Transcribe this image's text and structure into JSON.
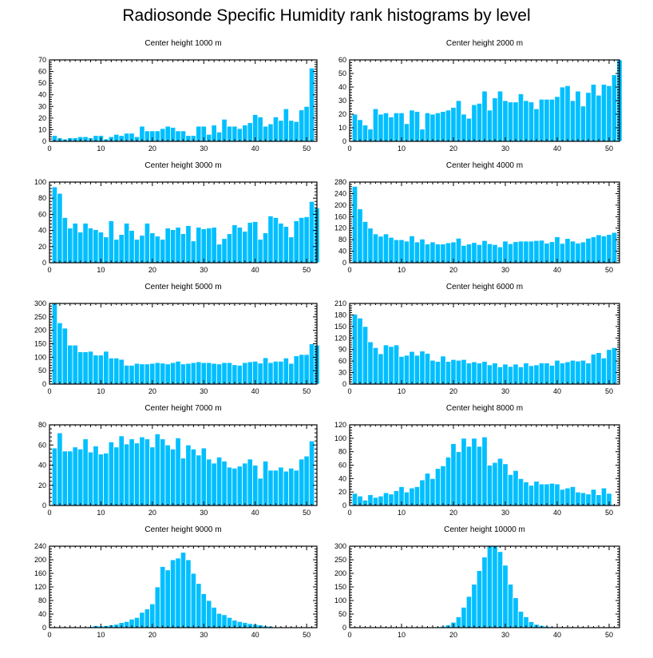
{
  "title": "Radiosonde Specific Humidity rank histograms by level",
  "colors": {
    "bar": "#00bfff",
    "bar_edge": "#ffffff",
    "axis": "#000000"
  },
  "chart_data": [
    {
      "type": "bar",
      "title": "Center height 1000 m",
      "x_start": 1,
      "xlim": [
        0,
        52
      ],
      "xticks": [
        0,
        10,
        20,
        30,
        40,
        50
      ],
      "ylim": [
        0,
        70
      ],
      "yticks": [
        0,
        10,
        20,
        30,
        40,
        50,
        60,
        70
      ],
      "values": [
        5,
        3,
        2,
        3,
        3,
        4,
        4,
        3,
        5,
        5,
        2,
        4,
        6,
        5,
        7,
        7,
        4,
        13,
        9,
        9,
        9,
        11,
        13,
        12,
        9,
        9,
        5,
        5,
        13,
        13,
        6,
        14,
        8,
        19,
        13,
        13,
        11,
        14,
        16,
        23,
        21,
        13,
        15,
        21,
        18,
        28,
        18,
        17,
        27,
        30,
        63,
        0
      ]
    },
    {
      "type": "bar",
      "title": "Center height 2000 m",
      "x_start": 1,
      "xlim": [
        0,
        52
      ],
      "xticks": [
        0,
        10,
        20,
        30,
        40,
        50
      ],
      "ylim": [
        0,
        60
      ],
      "yticks": [
        0,
        10,
        20,
        30,
        40,
        50,
        60
      ],
      "values": [
        20,
        16,
        12,
        9,
        24,
        20,
        21,
        18,
        21,
        21,
        13,
        23,
        22,
        9,
        21,
        20,
        21,
        22,
        23,
        25,
        30,
        20,
        17,
        27,
        28,
        37,
        23,
        32,
        37,
        30,
        29,
        29,
        35,
        30,
        29,
        24,
        31,
        31,
        31,
        33,
        40,
        41,
        30,
        37,
        26,
        36,
        42,
        34,
        42,
        41,
        49,
        60
      ]
    },
    {
      "type": "bar",
      "title": "Center height 3000 m",
      "x_start": 1,
      "xlim": [
        0,
        52
      ],
      "xticks": [
        0,
        10,
        20,
        30,
        40,
        50
      ],
      "ylim": [
        0,
        100
      ],
      "yticks": [
        0,
        20,
        40,
        60,
        80,
        100
      ],
      "values": [
        94,
        86,
        56,
        43,
        49,
        38,
        49,
        43,
        41,
        38,
        32,
        52,
        29,
        35,
        49,
        40,
        29,
        34,
        49,
        37,
        33,
        29,
        43,
        41,
        44,
        36,
        46,
        27,
        44,
        42,
        43,
        44,
        23,
        30,
        36,
        47,
        44,
        39,
        50,
        51,
        29,
        37,
        58,
        56,
        49,
        45,
        32,
        52,
        56,
        57,
        76,
        68
      ]
    },
    {
      "type": "bar",
      "title": "Center height 4000 m",
      "x_start": 1,
      "xlim": [
        0,
        52
      ],
      "xticks": [
        0,
        10,
        20,
        30,
        40,
        50
      ],
      "ylim": [
        0,
        280
      ],
      "yticks": [
        0,
        40,
        80,
        120,
        160,
        200,
        240,
        280
      ],
      "values": [
        265,
        187,
        143,
        120,
        100,
        92,
        100,
        88,
        80,
        80,
        75,
        93,
        72,
        82,
        65,
        72,
        65,
        65,
        69,
        72,
        85,
        60,
        65,
        70,
        63,
        77,
        66,
        63,
        55,
        75,
        66,
        73,
        75,
        75,
        75,
        77,
        78,
        68,
        73,
        90,
        67,
        84,
        75,
        68,
        72,
        85,
        90,
        97,
        93,
        98,
        105,
        0
      ]
    },
    {
      "type": "bar",
      "title": "Center height 5000 m",
      "x_start": 1,
      "xlim": [
        0,
        52
      ],
      "xticks": [
        0,
        10,
        20,
        30,
        40,
        50
      ],
      "ylim": [
        0,
        300
      ],
      "yticks": [
        0,
        50,
        100,
        150,
        200,
        250,
        300
      ],
      "values": [
        300,
        228,
        208,
        145,
        145,
        120,
        120,
        122,
        108,
        108,
        122,
        97,
        97,
        92,
        70,
        70,
        77,
        75,
        75,
        77,
        80,
        78,
        75,
        80,
        85,
        75,
        77,
        80,
        83,
        80,
        80,
        77,
        75,
        80,
        80,
        72,
        70,
        80,
        83,
        85,
        78,
        98,
        80,
        85,
        85,
        97,
        77,
        105,
        110,
        110,
        150,
        145
      ]
    },
    {
      "type": "bar",
      "title": "Center height 6000 m",
      "x_start": 1,
      "xlim": [
        0,
        52
      ],
      "xticks": [
        0,
        10,
        20,
        30,
        40,
        50
      ],
      "ylim": [
        0,
        210
      ],
      "yticks": [
        0,
        30,
        60,
        90,
        120,
        150,
        180,
        210
      ],
      "values": [
        182,
        172,
        150,
        110,
        95,
        79,
        102,
        98,
        102,
        72,
        75,
        85,
        75,
        86,
        80,
        62,
        59,
        73,
        59,
        64,
        62,
        64,
        55,
        58,
        55,
        59,
        50,
        55,
        45,
        52,
        46,
        52,
        45,
        55,
        48,
        50,
        55,
        55,
        49,
        62,
        55,
        58,
        62,
        60,
        62,
        55,
        78,
        82,
        68,
        90,
        95,
        0
      ]
    },
    {
      "type": "bar",
      "title": "Center height 7000 m",
      "x_start": 1,
      "xlim": [
        0,
        52
      ],
      "xticks": [
        0,
        10,
        20,
        30,
        40,
        50
      ],
      "ylim": [
        0,
        80
      ],
      "yticks": [
        0,
        20,
        40,
        60,
        80
      ],
      "values": [
        57,
        72,
        54,
        54,
        58,
        56,
        66,
        53,
        59,
        51,
        52,
        63,
        58,
        69,
        61,
        66,
        62,
        68,
        66,
        58,
        71,
        66,
        60,
        56,
        67,
        47,
        60,
        56,
        50,
        57,
        46,
        42,
        48,
        44,
        38,
        37,
        39,
        42,
        46,
        40,
        27,
        44,
        35,
        35,
        38,
        34,
        37,
        35,
        46,
        49,
        64,
        0
      ]
    },
    {
      "type": "bar",
      "title": "Center height 8000 m",
      "x_start": 1,
      "xlim": [
        0,
        52
      ],
      "xticks": [
        0,
        10,
        20,
        30,
        40,
        50
      ],
      "ylim": [
        0,
        120
      ],
      "yticks": [
        0,
        20,
        40,
        60,
        80,
        100,
        120
      ],
      "values": [
        18,
        14,
        8,
        16,
        12,
        14,
        19,
        17,
        22,
        28,
        20,
        26,
        28,
        38,
        48,
        40,
        55,
        59,
        72,
        92,
        80,
        100,
        88,
        100,
        88,
        102,
        60,
        64,
        70,
        62,
        46,
        52,
        40,
        35,
        30,
        36,
        32,
        32,
        33,
        32,
        24,
        26,
        28,
        20,
        19,
        17,
        24,
        16,
        26,
        18,
        0,
        0
      ]
    },
    {
      "type": "bar",
      "title": "Center height 9000 m",
      "x_start": 1,
      "xlim": [
        0,
        52
      ],
      "xticks": [
        0,
        10,
        20,
        30,
        40,
        50
      ],
      "ylim": [
        0,
        240
      ],
      "yticks": [
        0,
        40,
        80,
        120,
        160,
        200,
        240
      ],
      "values": [
        0,
        0,
        0,
        0,
        0,
        0,
        2,
        3,
        6,
        5,
        6,
        8,
        10,
        15,
        18,
        25,
        30,
        45,
        55,
        70,
        120,
        180,
        170,
        200,
        205,
        222,
        200,
        160,
        130,
        100,
        80,
        60,
        42,
        38,
        30,
        22,
        18,
        15,
        12,
        10,
        8,
        5,
        4,
        2,
        1,
        1,
        0,
        0,
        0,
        0,
        0,
        0
      ]
    },
    {
      "type": "bar",
      "title": "Center height 10000 m",
      "x_start": 1,
      "xlim": [
        0,
        52
      ],
      "xticks": [
        0,
        10,
        20,
        30,
        40,
        50
      ],
      "ylim": [
        0,
        300
      ],
      "yticks": [
        0,
        50,
        100,
        150,
        200,
        250,
        300
      ],
      "values": [
        0,
        0,
        0,
        0,
        0,
        0,
        0,
        0,
        0,
        0,
        0,
        0,
        0,
        0,
        0,
        0,
        3,
        5,
        10,
        20,
        40,
        75,
        115,
        160,
        210,
        260,
        300,
        300,
        280,
        230,
        160,
        110,
        60,
        40,
        22,
        12,
        8,
        5,
        3,
        2,
        2,
        1,
        1,
        0,
        0,
        0,
        0,
        0,
        0,
        0,
        0,
        0
      ]
    }
  ]
}
